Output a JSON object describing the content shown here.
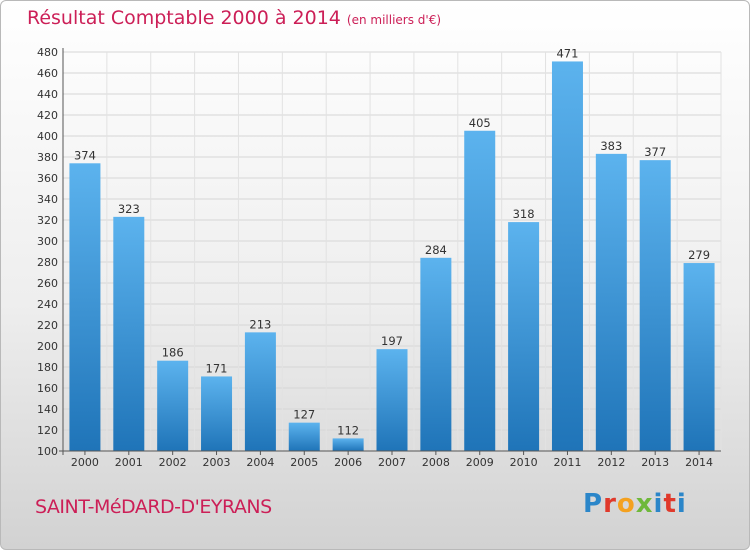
{
  "chart_data": {
    "type": "bar",
    "title": "Résultat Comptable 2000 à 2014",
    "subtitle": "(en milliers d'€)",
    "categories": [
      "2000",
      "2001",
      "2002",
      "2003",
      "2004",
      "2005",
      "2006",
      "2007",
      "2008",
      "2009",
      "2010",
      "2011",
      "2012",
      "2013",
      "2014"
    ],
    "values": [
      374,
      323,
      186,
      171,
      213,
      127,
      112,
      197,
      284,
      405,
      318,
      471,
      383,
      377,
      279
    ],
    "ylim": [
      100,
      480
    ],
    "yticks": [
      100,
      120,
      140,
      160,
      180,
      200,
      220,
      240,
      260,
      280,
      300,
      320,
      340,
      360,
      380,
      400,
      420,
      440,
      460,
      480
    ],
    "grid": true,
    "bar_color": "#3a96dc"
  },
  "footer": {
    "place": "SAINT-MéDARD-D'EYRANS",
    "logo": "Proxiti"
  }
}
